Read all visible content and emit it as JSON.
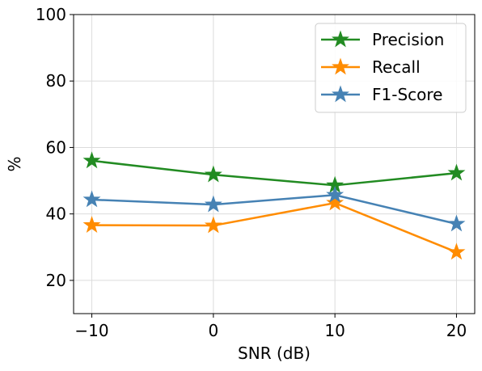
{
  "chart_data": {
    "type": "line",
    "x": [
      -10,
      0,
      10,
      20
    ],
    "x_tick_labels": [
      "−10",
      "0",
      "10",
      "20"
    ],
    "y_ticks": [
      20,
      40,
      60,
      80,
      100
    ],
    "y_tick_labels": [
      "20",
      "40",
      "60",
      "80",
      "100"
    ],
    "xlabel": "SNR (dB)",
    "ylabel": "%",
    "xlim": [
      -11.5,
      21.5
    ],
    "ylim": [
      10,
      100
    ],
    "grid": true,
    "legend_position": "top-right",
    "marker": "star",
    "series": [
      {
        "name": "Precision",
        "color": "#228b22",
        "values": [
          56.0,
          51.8,
          48.6,
          52.3
        ]
      },
      {
        "name": "Recall",
        "color": "#ff8c00",
        "values": [
          36.6,
          36.5,
          43.3,
          28.5
        ]
      },
      {
        "name": "F1-Score",
        "color": "#4682b4",
        "values": [
          44.3,
          42.8,
          45.7,
          37.0
        ]
      }
    ]
  }
}
